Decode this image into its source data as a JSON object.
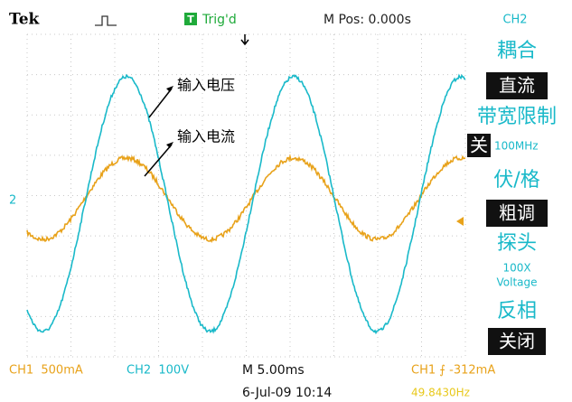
{
  "header": {
    "brand": "Tek",
    "trigger_badge": "T",
    "trigger_status": "Trig'd",
    "position": "M Pos: 0.000s"
  },
  "annotations": {
    "voltage": "输入电压",
    "current": "输入电流"
  },
  "menu": {
    "channel": "CH2",
    "coupling_label": "耦合",
    "coupling_value": "直流",
    "bandwidth_label": "带宽限制",
    "bandwidth_value": "关",
    "bandwidth_limit": "100MHz",
    "volts_div_label": "伏/格",
    "volts_div_value": "粗调",
    "probe_label": "探头",
    "probe_value": "100X",
    "probe_type": "Voltage",
    "invert_label": "反相",
    "invert_value": "关闭"
  },
  "status": {
    "ch1_scale": "CH1  500mA",
    "ch2_scale": "CH2  100V",
    "timebase": "M 5.00ms",
    "trigger": "CH1 ⨍ -312mA",
    "date": "6-Jul-09 10:14",
    "frequency": "49.8430Hz"
  },
  "markers": {
    "ch2": "2"
  }
}
